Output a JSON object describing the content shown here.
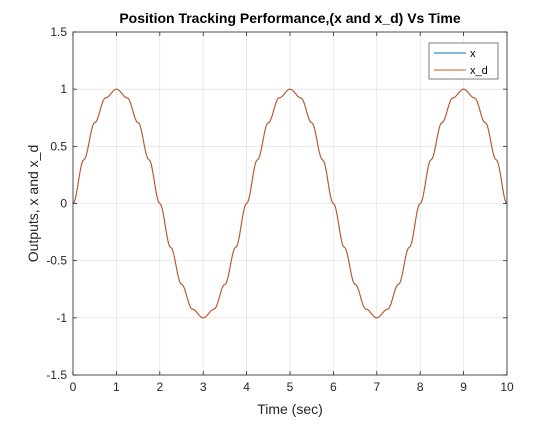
{
  "chart_data": {
    "type": "line",
    "title": "Position Tracking Performance,(x and x_d) Vs Time",
    "xlabel": "Time (sec)",
    "ylabel": "Outputs, x and x_d",
    "xlim": [
      0,
      10
    ],
    "ylim": [
      -1.5,
      1.5
    ],
    "xticks": [
      0,
      1,
      2,
      3,
      4,
      5,
      6,
      7,
      8,
      9,
      10
    ],
    "yticks": [
      -1.5,
      -1,
      -0.5,
      0,
      0.5,
      1,
      1.5
    ],
    "xtick_labels": [
      "0",
      "1",
      "2",
      "3",
      "4",
      "5",
      "6",
      "7",
      "8",
      "9",
      "10"
    ],
    "ytick_labels": [
      "-1.5",
      "-1",
      "-0.5",
      "0",
      "0.5",
      "1",
      "1.5"
    ],
    "grid": true,
    "legend_position": "top-right",
    "series": [
      {
        "name": "x",
        "color": "#0072BD",
        "x": [
          0,
          0.25,
          0.5,
          0.75,
          1,
          1.25,
          1.5,
          1.75,
          2,
          2.25,
          2.5,
          2.75,
          3,
          3.25,
          3.5,
          3.75,
          4,
          4.25,
          4.5,
          4.75,
          5,
          5.25,
          5.5,
          5.75,
          6,
          6.25,
          6.5,
          6.75,
          7,
          7.25,
          7.5,
          7.75,
          8,
          8.25,
          8.5,
          8.75,
          9,
          9.25,
          9.5,
          9.75,
          10
        ],
        "y": [
          0,
          0.383,
          0.707,
          0.924,
          1,
          0.924,
          0.707,
          0.383,
          0,
          -0.383,
          -0.707,
          -0.924,
          -1,
          -0.924,
          -0.707,
          -0.383,
          0,
          0.383,
          0.707,
          0.924,
          1,
          0.924,
          0.707,
          0.383,
          0,
          -0.383,
          -0.707,
          -0.924,
          -1,
          -0.924,
          -0.707,
          -0.383,
          0,
          0.383,
          0.707,
          0.924,
          1,
          0.924,
          0.707,
          0.383,
          0
        ]
      },
      {
        "name": "x_d",
        "color": "#D95319",
        "x": [
          0,
          0.25,
          0.5,
          0.75,
          1,
          1.25,
          1.5,
          1.75,
          2,
          2.25,
          2.5,
          2.75,
          3,
          3.25,
          3.5,
          3.75,
          4,
          4.25,
          4.5,
          4.75,
          5,
          5.25,
          5.5,
          5.75,
          6,
          6.25,
          6.5,
          6.75,
          7,
          7.25,
          7.5,
          7.75,
          8,
          8.25,
          8.5,
          8.75,
          9,
          9.25,
          9.5,
          9.75,
          10
        ],
        "y": [
          0,
          0.383,
          0.707,
          0.924,
          1,
          0.924,
          0.707,
          0.383,
          0,
          -0.383,
          -0.707,
          -0.924,
          -1,
          -0.924,
          -0.707,
          -0.383,
          0,
          0.383,
          0.707,
          0.924,
          1,
          0.924,
          0.707,
          0.383,
          0,
          -0.383,
          -0.707,
          -0.924,
          -1,
          -0.924,
          -0.707,
          -0.383,
          0,
          0.383,
          0.707,
          0.924,
          1,
          0.924,
          0.707,
          0.383,
          0
        ]
      }
    ]
  }
}
